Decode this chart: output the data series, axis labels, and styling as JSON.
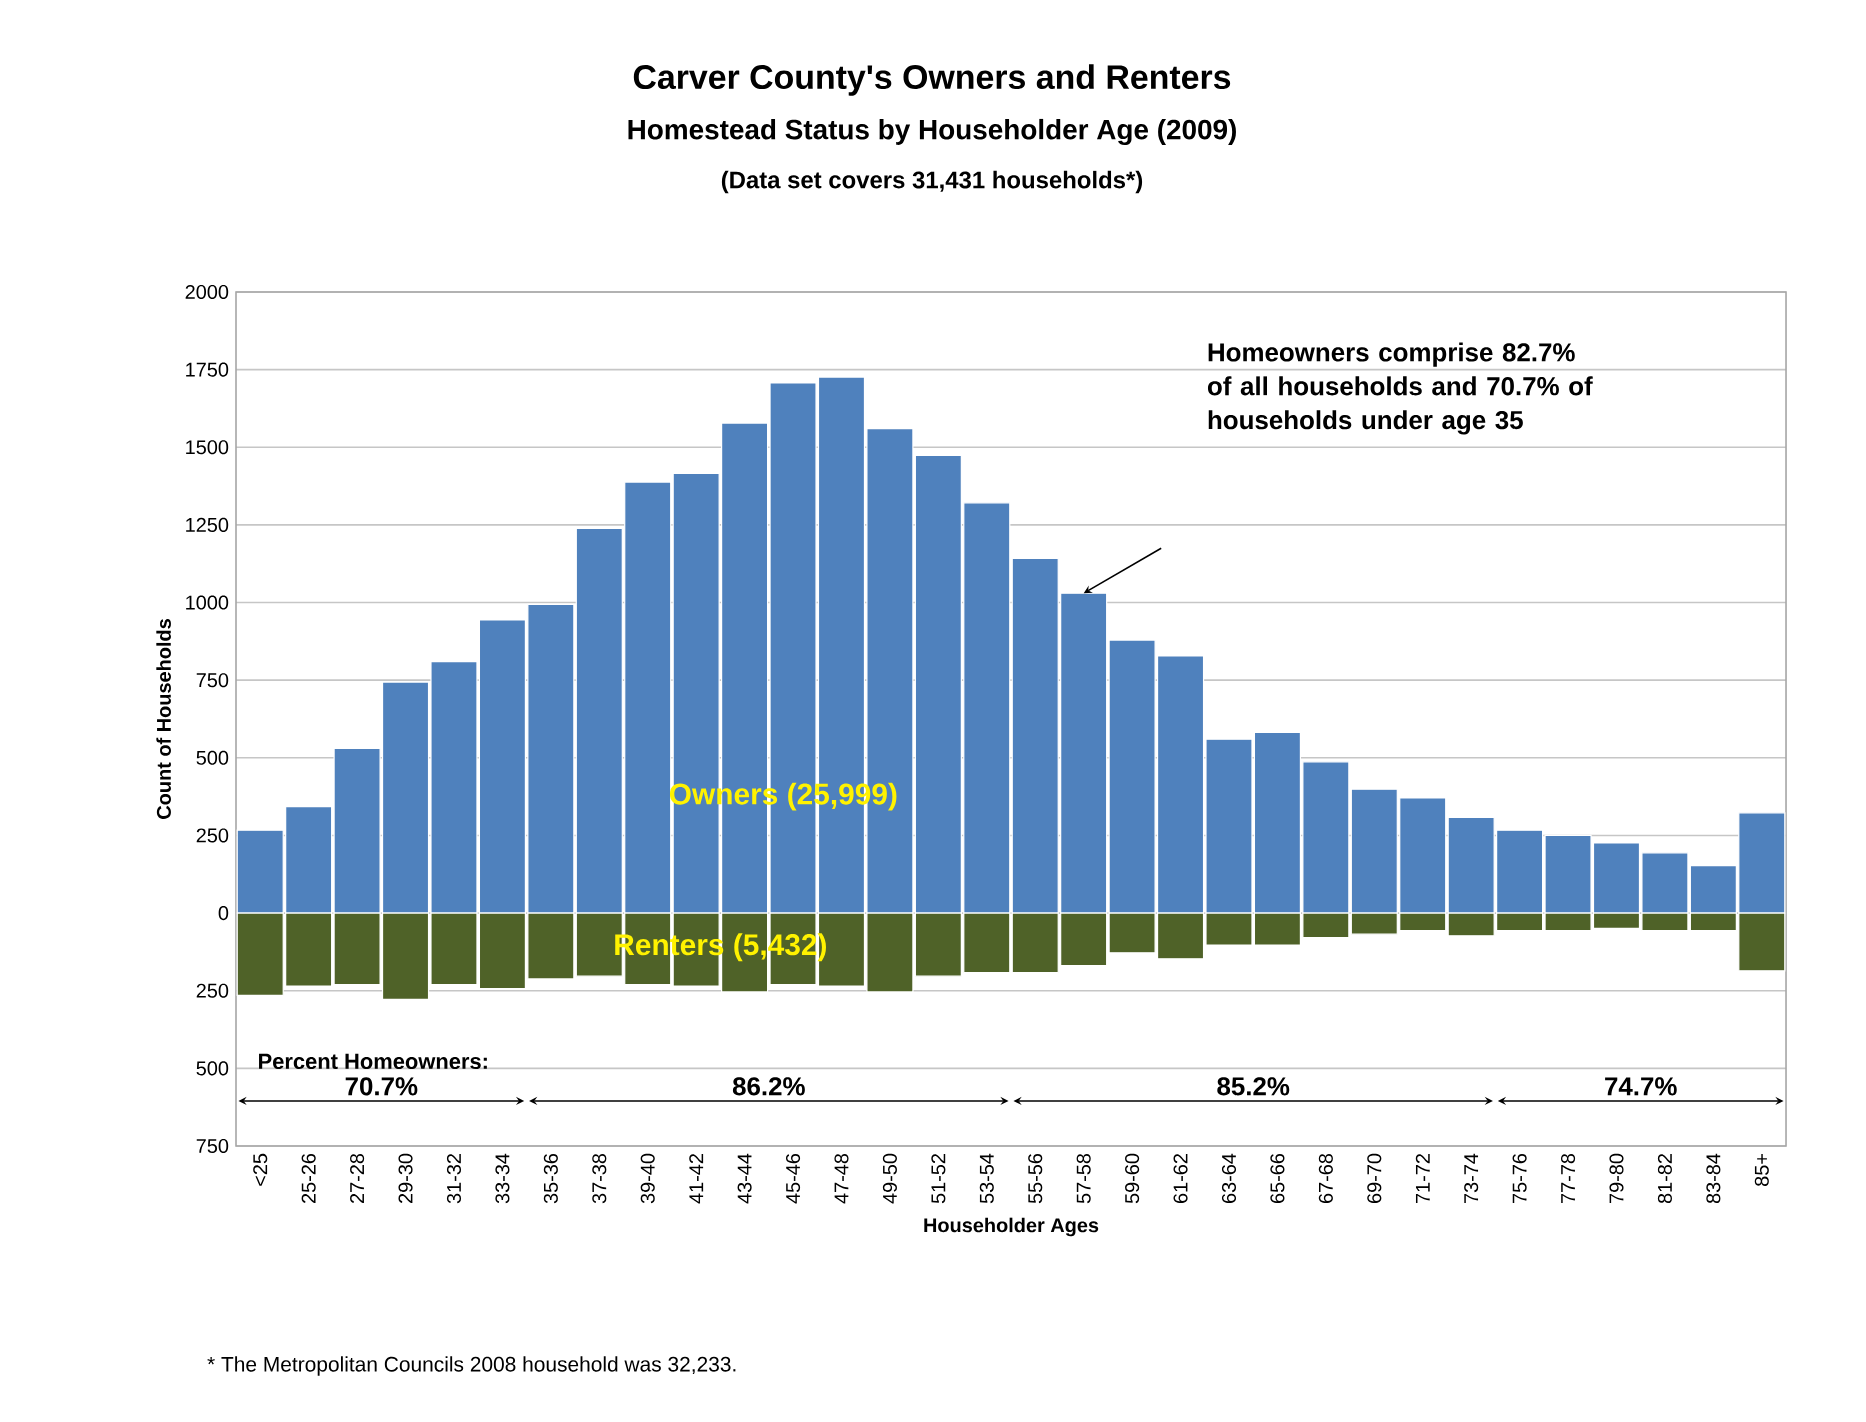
{
  "chart_data": {
    "type": "bar",
    "title": "Carver County's Owners and Renters",
    "subtitle": "Homestead Status by Householder Age (2009)",
    "xlabel": "Householder Ages",
    "ylabel": "Count of Households",
    "categories": [
      "<25",
      "25-26",
      "27-28",
      "29-30",
      "31-32",
      "33-34",
      "35-36",
      "37-38",
      "39-40",
      "41-42",
      "43-44",
      "45-46",
      "47-48",
      "49-50",
      "51-52",
      "53-54",
      "55-56",
      "57-58",
      "59-60",
      "61-62",
      "63-64",
      "65-66",
      "67-68",
      "69-70",
      "71-72",
      "73-74",
      "75-76",
      "77-78",
      "79-80",
      "81-82",
      "83-84",
      "85+"
    ],
    "series": [
      {
        "name": "Owners (25,999)",
        "color": "#4f81bd",
        "values": [
          267,
          343,
          530,
          744,
          810,
          944,
          994,
          1239,
          1388,
          1416,
          1578,
          1707,
          1726,
          1560,
          1474,
          1321,
          1142,
          1030,
          879,
          828,
          560,
          582,
          487,
          399,
          371,
          308,
          267,
          250,
          226,
          194,
          153,
          323
        ]
      },
      {
        "name": "Renters (5,432)",
        "color": "#4f6228",
        "values": [
          -265,
          -235,
          -230,
          -278,
          -230,
          -243,
          -212,
          -203,
          -230,
          -235,
          -254,
          -230,
          -235,
          -254,
          -203,
          -192,
          -192,
          -169,
          -128,
          -147,
          -103,
          -103,
          -79,
          -68,
          -56,
          -73,
          -56,
          -56,
          -49,
          -56,
          -56,
          -186
        ]
      }
    ],
    "stacked": true,
    "grid": "y",
    "legend": false,
    "ylim": [
      -750,
      2000
    ],
    "yticks": [
      {
        "value": -750,
        "label": "750"
      },
      {
        "value": -500,
        "label": "500"
      },
      {
        "value": -250,
        "label": "250"
      },
      0,
      250,
      500,
      750,
      1000,
      1250,
      1500,
      1750,
      2000
    ],
    "annotations": [
      "(Data set covers 31,431 households*)",
      "70.7%",
      "86.2%",
      "85.2%",
      "74.7%",
      "Homeowners comprise 82.7% of all households and 70.7% of households under age 35",
      "Percent Homeowners:",
      "* The Metropolitan Councils 2008 household was 32,233."
    ]
  }
}
